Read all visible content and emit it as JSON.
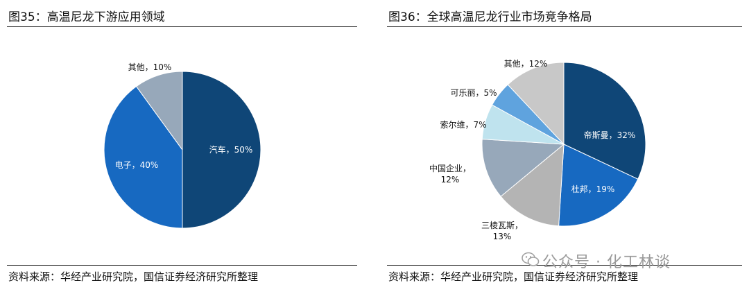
{
  "left": {
    "title": "图35：高温尼龙下游应用领域",
    "source": "资料来源：华经产业研究院，国信证券经济研究所整理"
  },
  "right": {
    "title": "图36：全球高温尼龙行业市场竞争格局",
    "source": "资料来源：华经产业研究院，国信证券经济研究所整理"
  },
  "watermark": {
    "text": "公众号 · 化工林谈",
    "icon": "wechat-icon"
  },
  "chart_data": [
    {
      "type": "pie",
      "title": "图35：高温尼龙下游应用领域",
      "slices": [
        {
          "label": "汽车",
          "value": 50,
          "color": "#0f4677",
          "display": [
            "汽车，50%"
          ]
        },
        {
          "label": "电子",
          "value": 40,
          "color": "#1769c1",
          "display": [
            "电子，40%"
          ]
        },
        {
          "label": "其他",
          "value": 10,
          "color": "#97a8ba",
          "display": [
            "其他，10%"
          ]
        }
      ]
    },
    {
      "type": "pie",
      "title": "图36：全球高温尼龙行业市场竞争格局",
      "slices": [
        {
          "label": "帝斯曼",
          "value": 32,
          "color": "#0f4677",
          "display": [
            "帝斯曼，32%"
          ]
        },
        {
          "label": "杜邦",
          "value": 19,
          "color": "#1769c1",
          "display": [
            "杜邦，19%"
          ]
        },
        {
          "label": "三棱瓦斯",
          "value": 13,
          "color": "#b4b4b4",
          "display": [
            "三棱瓦斯，",
            "13%"
          ]
        },
        {
          "label": "中国企业",
          "value": 12,
          "color": "#97a8ba",
          "display": [
            "中国企业，",
            "12%"
          ]
        },
        {
          "label": "索尔维",
          "value": 7,
          "color": "#bfe3ee",
          "display": [
            "索尔维，7%"
          ]
        },
        {
          "label": "可乐丽",
          "value": 5,
          "color": "#5fa3de",
          "display": [
            "可乐丽，5%"
          ]
        },
        {
          "label": "其他",
          "value": 12,
          "color": "#c8c8c8",
          "display": [
            "其他，12%"
          ]
        }
      ]
    }
  ]
}
